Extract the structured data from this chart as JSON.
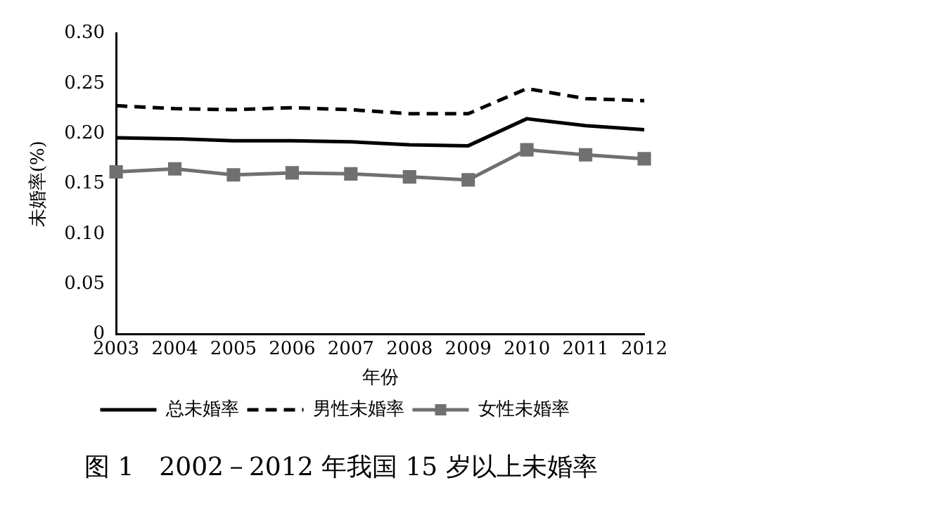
{
  "chart_data": {
    "type": "line",
    "title": "图 1　2002－2012 年我国 15 岁以上未婚率",
    "xlabel": "年份",
    "ylabel": "未婚率(%)",
    "categories": [
      "2003",
      "2004",
      "2005",
      "2006",
      "2007",
      "2008",
      "2009",
      "2010",
      "2011",
      "2012"
    ],
    "series": [
      {
        "name": "总未婚率",
        "color": "#000000",
        "line_style": "solid",
        "marker": "none",
        "values": [
          0.196,
          0.195,
          0.193,
          0.193,
          0.192,
          0.189,
          0.188,
          0.215,
          0.208,
          0.204
        ]
      },
      {
        "name": "男性未婚率",
        "color": "#000000",
        "line_style": "dashed",
        "marker": "none",
        "values": [
          0.228,
          0.225,
          0.224,
          0.226,
          0.224,
          0.22,
          0.22,
          0.245,
          0.235,
          0.233
        ]
      },
      {
        "name": "女性未婚率",
        "color": "#707070",
        "line_style": "solid",
        "marker": "square",
        "values": [
          0.162,
          0.165,
          0.159,
          0.161,
          0.16,
          0.157,
          0.154,
          0.184,
          0.179,
          0.175
        ]
      }
    ],
    "ylim": [
      0,
      0.3
    ],
    "yticks": [
      0,
      {
        "value": 0.05,
        "label": "0.05"
      },
      {
        "value": 0.1,
        "label": "0.10"
      },
      {
        "value": 0.15,
        "label": "0.15"
      },
      {
        "value": 0.2,
        "label": "0.20"
      },
      {
        "value": 0.25,
        "label": "0.25"
      },
      {
        "value": 0.3,
        "label": "0.30"
      }
    ],
    "grid": false,
    "legend": "bottom"
  }
}
